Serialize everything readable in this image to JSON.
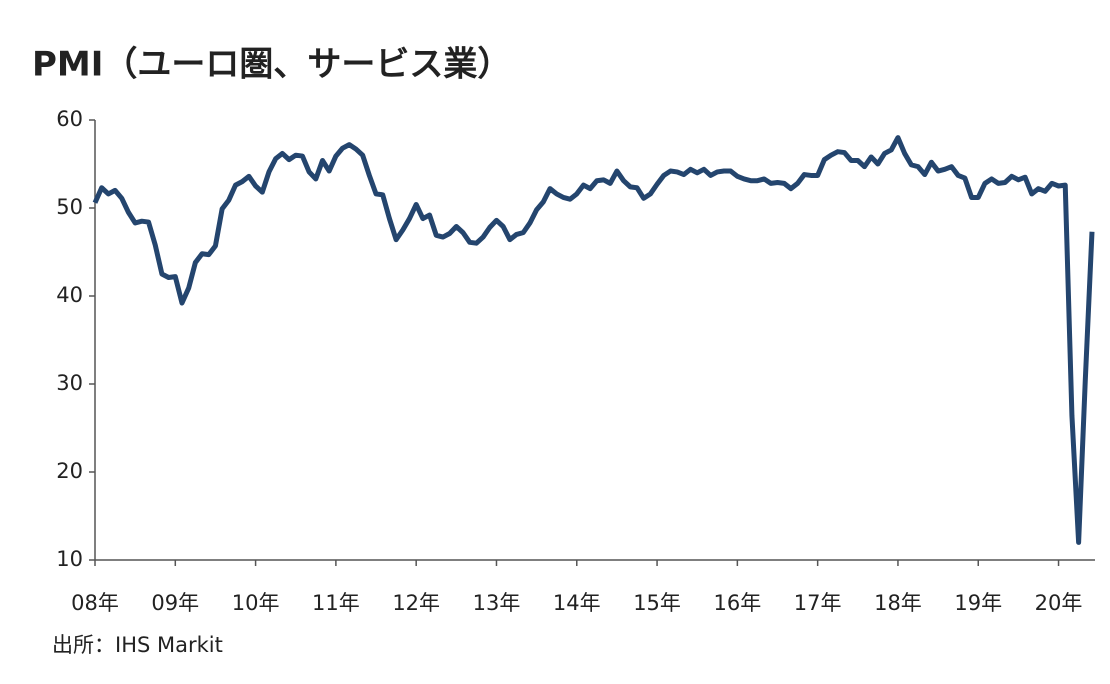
{
  "chart_data": {
    "type": "line",
    "title": "PMI（ユーロ圏、サービス業）",
    "source": "出所：IHS Markit",
    "categories": [
      "08年",
      null,
      null,
      null,
      null,
      null,
      null,
      null,
      null,
      null,
      null,
      null,
      "09年",
      null,
      null,
      null,
      null,
      null,
      null,
      null,
      null,
      null,
      null,
      null,
      "10年",
      null,
      null,
      null,
      null,
      null,
      null,
      null,
      null,
      null,
      null,
      null,
      "11年",
      null,
      null,
      null,
      null,
      null,
      null,
      null,
      null,
      null,
      null,
      null,
      "12年",
      null,
      null,
      null,
      null,
      null,
      null,
      null,
      null,
      null,
      null,
      null,
      "13年",
      null,
      null,
      null,
      null,
      null,
      null,
      null,
      null,
      null,
      null,
      null,
      "14年",
      null,
      null,
      null,
      null,
      null,
      null,
      null,
      null,
      null,
      null,
      null,
      "15年",
      null,
      null,
      null,
      null,
      null,
      null,
      null,
      null,
      null,
      null,
      null,
      "16年",
      null,
      null,
      null,
      null,
      null,
      null,
      null,
      null,
      null,
      null,
      null,
      "17年",
      null,
      null,
      null,
      null,
      null,
      null,
      null,
      null,
      null,
      null,
      null,
      "18年",
      null,
      null,
      null,
      null,
      null,
      null,
      null,
      null,
      null,
      null,
      null,
      "19年",
      null,
      null,
      null,
      null,
      null,
      null,
      null,
      null,
      null,
      null,
      null,
      "20年",
      null,
      null,
      null,
      null,
      null
    ],
    "series": [
      {
        "color": "#24456e",
        "values": [
          50.6,
          52.3,
          51.6,
          52.0,
          51.1,
          49.5,
          48.3,
          48.5,
          48.4,
          45.8,
          42.5,
          42.1,
          42.2,
          39.2,
          40.9,
          43.8,
          44.8,
          44.7,
          45.7,
          49.9,
          50.9,
          52.6,
          53.0,
          53.6,
          52.5,
          51.8,
          54.1,
          55.6,
          56.2,
          55.5,
          56.0,
          55.9,
          54.1,
          53.3,
          55.4,
          54.2,
          55.9,
          56.8,
          57.2,
          56.7,
          56.0,
          53.7,
          51.6,
          51.5,
          48.8,
          46.4,
          47.5,
          48.8,
          50.4,
          48.8,
          49.2,
          46.9,
          46.7,
          47.1,
          47.9,
          47.2,
          46.1,
          46.0,
          46.7,
          47.8,
          48.6,
          47.9,
          46.4,
          47.0,
          47.2,
          48.3,
          49.8,
          50.7,
          52.2,
          51.6,
          51.2,
          51.0,
          51.6,
          52.6,
          52.2,
          53.1,
          53.2,
          52.8,
          54.2,
          53.1,
          52.4,
          52.3,
          51.1,
          51.6,
          52.7,
          53.7,
          54.2,
          54.1,
          53.8,
          54.4,
          54.0,
          54.4,
          53.7,
          54.1,
          54.2,
          54.2,
          53.6,
          53.3,
          53.1,
          53.1,
          53.3,
          52.8,
          52.9,
          52.8,
          52.2,
          52.8,
          53.8,
          53.7,
          53.7,
          55.5,
          56.0,
          56.4,
          56.3,
          55.4,
          55.4,
          54.7,
          55.8,
          55.0,
          56.2,
          56.6,
          58.0,
          56.2,
          54.9,
          54.7,
          53.8,
          55.2,
          54.2,
          54.4,
          54.7,
          53.7,
          53.4,
          51.2,
          51.2,
          52.8,
          53.3,
          52.8,
          52.9,
          53.6,
          53.2,
          53.5,
          51.6,
          52.2,
          51.9,
          52.8,
          52.5,
          52.6,
          26.4,
          12.0,
          30.5,
          47.3
        ]
      }
    ],
    "ylim": [
      10,
      60
    ],
    "yticks": [
      10,
      20,
      30,
      40,
      50,
      60
    ]
  }
}
